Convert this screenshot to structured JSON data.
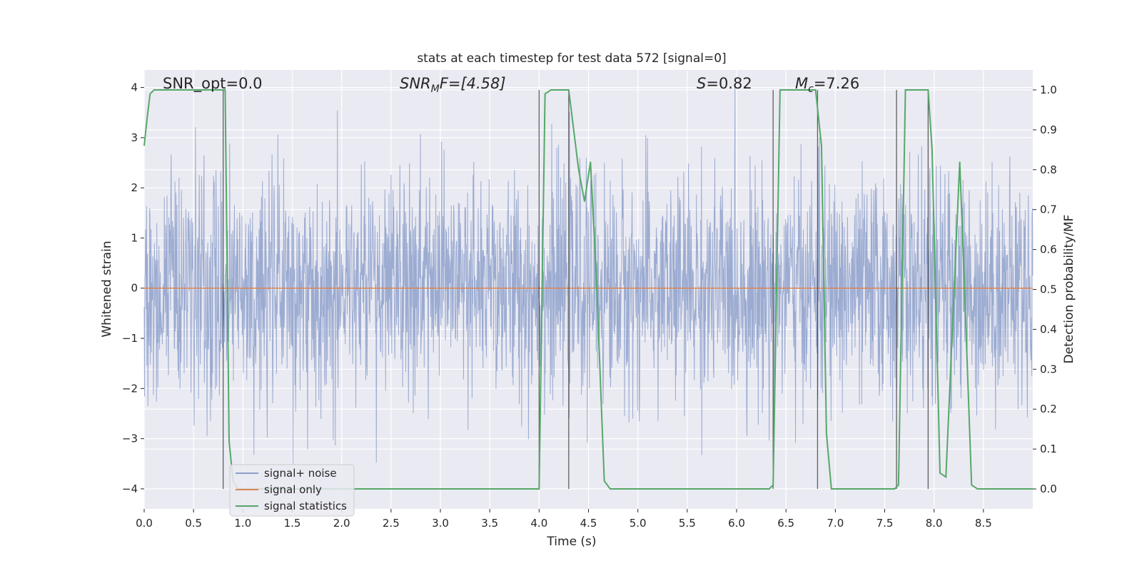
{
  "chart_data": {
    "type": "line",
    "title": "stats at each timestep for test data 572 [signal=0]",
    "xlabel": "Time (s)",
    "ylabel": "Whitened strain",
    "ylabel_right": "Detection probability/MF",
    "xlim": [
      0,
      9.0
    ],
    "ylim": [
      -4.4,
      4.35
    ],
    "ylim_right": [
      -0.05,
      1.05
    ],
    "x_ticks": [
      0.0,
      0.5,
      1.0,
      1.5,
      2.0,
      2.5,
      3.0,
      3.5,
      4.0,
      4.5,
      5.0,
      5.5,
      6.0,
      6.5,
      7.0,
      7.5,
      8.0,
      8.5
    ],
    "x_tick_labels": [
      "0.0",
      "0.5",
      "1.0",
      "1.5",
      "2.0",
      "2.5",
      "3.0",
      "3.5",
      "4.0",
      "4.5",
      "5.0",
      "5.5",
      "6.0",
      "6.5",
      "7.0",
      "7.5",
      "8.0",
      "8.5"
    ],
    "y_ticks": [
      -4,
      -3,
      -2,
      -1,
      0,
      1,
      2,
      3,
      4
    ],
    "y_tick_labels": [
      "−4",
      "−3",
      "−2",
      "−1",
      "0",
      "1",
      "2",
      "3",
      "4"
    ],
    "y_right_ticks": [
      0.0,
      0.1,
      0.2,
      0.3,
      0.4,
      0.5,
      0.6,
      0.7,
      0.8,
      0.9,
      1.0
    ],
    "y_right_tick_labels": [
      "0.0",
      "0.1",
      "0.2",
      "0.3",
      "0.4",
      "0.5",
      "0.6",
      "0.7",
      "0.8",
      "0.9",
      "1.0"
    ],
    "grid": true,
    "legend_position": "lower-left",
    "annotations": {
      "snr_opt": "SNR_opt=0.0",
      "snr_mf_pre": "SNR",
      "snr_mf_sub": "M",
      "snr_mf_post": "F=[4.58]",
      "s_label": "S",
      "s_value": "=0.82",
      "mc_label": "M",
      "mc_sub": "c",
      "mc_value": "=7.26"
    },
    "series": [
      {
        "name": "signal+ noise",
        "color": "#8da0cb",
        "kind": "noise",
        "sigma": 1.1,
        "seed": 572
      },
      {
        "name": "signal only",
        "color": "#dd8452",
        "kind": "flat",
        "value": 0
      },
      {
        "name": "signal statistics",
        "color": "#55a868",
        "axis": "right",
        "x": [
          0.0,
          0.03,
          0.06,
          0.1,
          0.2,
          0.5,
          0.8,
          0.82,
          0.86,
          0.9,
          0.95,
          1.0,
          2.0,
          3.0,
          3.8,
          4.0,
          4.06,
          4.12,
          4.2,
          4.3,
          4.4,
          4.46,
          4.52,
          4.58,
          4.66,
          4.72,
          4.8,
          5.5,
          6.0,
          6.33,
          6.37,
          6.44,
          6.5,
          6.8,
          6.86,
          6.91,
          6.96,
          7.0,
          7.5,
          7.6,
          7.64,
          7.71,
          7.8,
          7.94,
          7.98,
          8.06,
          8.12,
          8.26,
          8.3,
          8.38,
          8.44,
          8.6,
          9.0
        ],
        "y": [
          0.86,
          0.93,
          0.99,
          1.0,
          1.0,
          1.0,
          1.0,
          1.0,
          0.12,
          0.02,
          0.0,
          0.0,
          0.0,
          0.0,
          0.0,
          0.0,
          0.99,
          1.0,
          1.0,
          1.0,
          0.8,
          0.72,
          0.82,
          0.53,
          0.02,
          0.0,
          0.0,
          0.0,
          0.0,
          0.0,
          0.01,
          1.0,
          1.0,
          1.0,
          0.86,
          0.14,
          0.0,
          0.0,
          0.0,
          0.0,
          0.01,
          1.0,
          1.0,
          1.0,
          0.85,
          0.04,
          0.03,
          0.82,
          0.56,
          0.01,
          0.0,
          0.0,
          0.0
        ]
      }
    ],
    "vertical_lines": [
      0.8,
      4.0,
      4.3,
      6.37,
      6.82,
      7.62,
      7.94
    ]
  }
}
